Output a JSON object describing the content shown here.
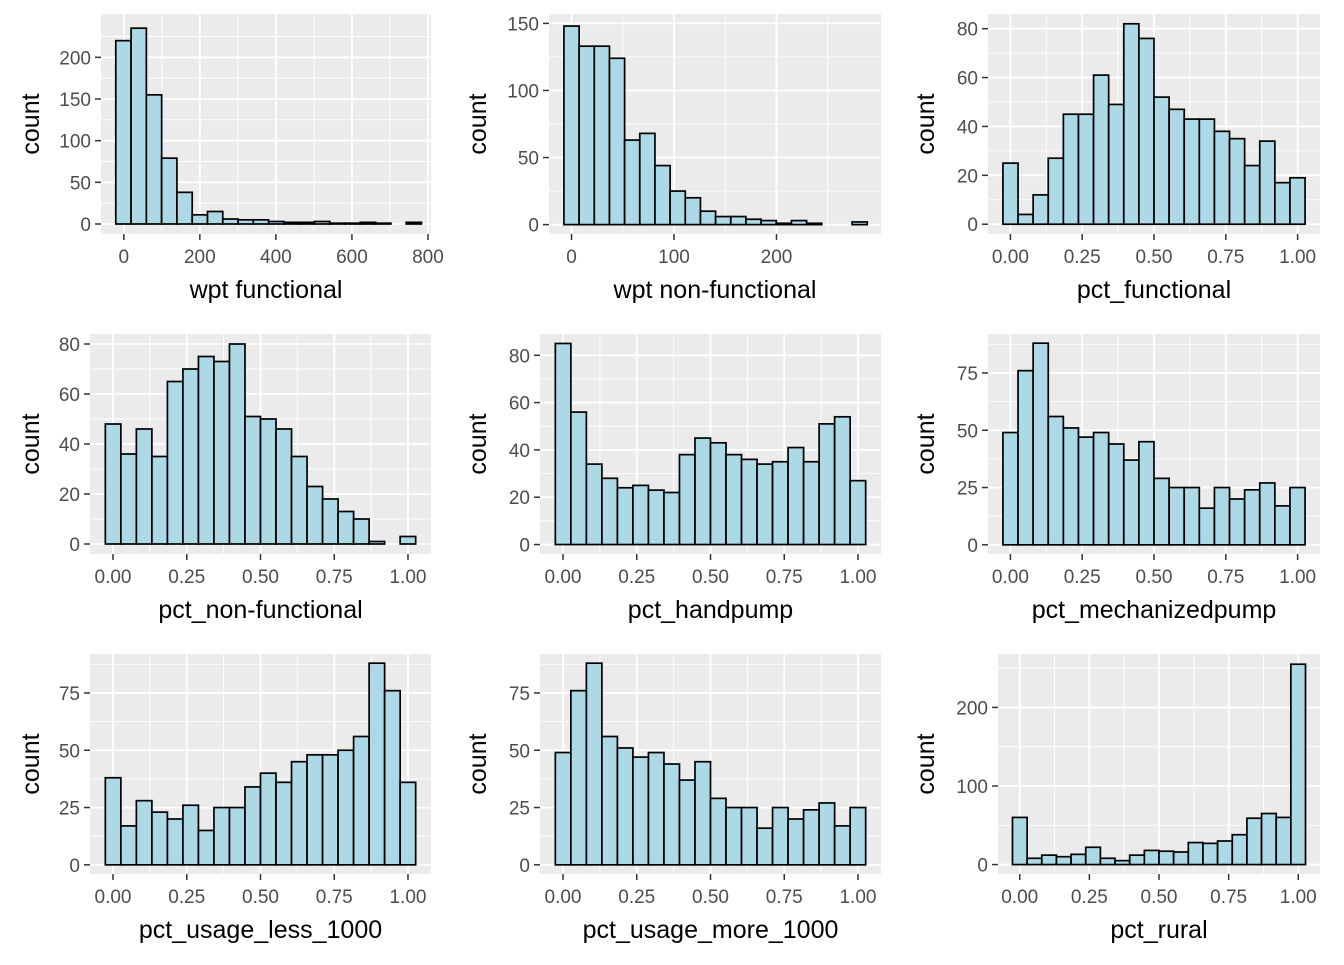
{
  "style": {
    "panel_bg": "#EBEBEB",
    "grid_color": "#FFFFFF",
    "bar_fill": "#ADD8E6",
    "bar_stroke": "#000000",
    "tick_color": "#333333"
  },
  "chart_data": [
    {
      "type": "bar",
      "xlabel": "wpt functional",
      "ylabel": "count",
      "bin_start": -21.1,
      "bin_width": 40.2,
      "values": [
        220,
        235,
        155,
        79,
        38,
        11,
        15,
        6,
        5,
        5,
        3,
        2,
        2,
        3,
        1,
        1,
        2,
        1,
        0,
        2
      ],
      "xlim": [
        -60,
        808
      ],
      "ylim": [
        -12,
        252
      ],
      "x_ticks": [
        0,
        200,
        400,
        600,
        800
      ],
      "y_ticks": [
        0,
        50,
        100,
        150,
        200
      ]
    },
    {
      "type": "bar",
      "xlabel": "wpt non-functional",
      "ylabel": "count",
      "bin_start": -7.4,
      "bin_width": 14.8,
      "values": [
        148,
        133,
        133,
        124,
        63,
        68,
        44,
        25,
        20,
        10,
        6,
        6,
        4,
        3,
        1,
        3,
        1,
        0,
        0,
        2
      ],
      "xlim": [
        -22,
        302
      ],
      "ylim": [
        -7,
        157
      ],
      "x_ticks": [
        0,
        100,
        200
      ],
      "y_ticks": [
        0,
        50,
        100,
        150
      ]
    },
    {
      "type": "bar",
      "xlabel": "pct_functional",
      "ylabel": "count",
      "bin_start": -0.026,
      "bin_width": 0.0526,
      "values": [
        25,
        4,
        12,
        27,
        45,
        45,
        61,
        49,
        82,
        76,
        52,
        47,
        43,
        43,
        38,
        35,
        24,
        34,
        17,
        19
      ],
      "xlim": [
        -0.078,
        1.078
      ],
      "ylim": [
        -4,
        86
      ],
      "x_ticks": [
        "0.00",
        "0.25",
        "0.50",
        "0.75",
        "1.00"
      ],
      "y_ticks": [
        0,
        20,
        40,
        60,
        80
      ]
    },
    {
      "type": "bar",
      "xlabel": "pct_non-functional",
      "ylabel": "count",
      "bin_start": -0.026,
      "bin_width": 0.0526,
      "values": [
        48,
        36,
        46,
        35,
        65,
        70,
        75,
        73,
        80,
        51,
        50,
        46,
        35,
        23,
        18,
        13,
        10,
        1,
        0,
        3
      ],
      "xlim": [
        -0.078,
        1.078
      ],
      "ylim": [
        -4,
        84
      ],
      "x_ticks": [
        "0.00",
        "0.25",
        "0.50",
        "0.75",
        "1.00"
      ],
      "y_ticks": [
        0,
        20,
        40,
        60,
        80
      ]
    },
    {
      "type": "bar",
      "xlabel": "pct_handpump",
      "ylabel": "count",
      "bin_start": -0.026,
      "bin_width": 0.0526,
      "values": [
        85,
        56,
        34,
        28,
        24,
        25,
        23,
        22,
        38,
        45,
        43,
        38,
        36,
        34,
        35,
        41,
        35,
        51,
        54,
        27
      ],
      "xlim": [
        -0.078,
        1.078
      ],
      "ylim": [
        -4,
        89
      ],
      "x_ticks": [
        "0.00",
        "0.25",
        "0.50",
        "0.75",
        "1.00"
      ],
      "y_ticks": [
        0,
        20,
        40,
        60,
        80
      ]
    },
    {
      "type": "bar",
      "xlabel": "pct_mechanizedpump",
      "ylabel": "count",
      "bin_start": -0.026,
      "bin_width": 0.0526,
      "values": [
        49,
        76,
        88,
        56,
        51,
        47,
        49,
        44,
        37,
        45,
        29,
        25,
        25,
        16,
        25,
        20,
        24,
        27,
        17,
        25
      ],
      "xlim": [
        -0.078,
        1.078
      ],
      "ylim": [
        -4,
        92
      ],
      "x_ticks": [
        "0.00",
        "0.25",
        "0.50",
        "0.75",
        "1.00"
      ],
      "y_ticks": [
        0,
        25,
        50,
        75
      ]
    },
    {
      "type": "bar",
      "xlabel": "pct_usage_less_1000",
      "ylabel": "count",
      "bin_start": -0.026,
      "bin_width": 0.0526,
      "values": [
        38,
        17,
        28,
        23,
        20,
        26,
        15,
        25,
        25,
        34,
        40,
        36,
        45,
        48,
        48,
        50,
        56,
        88,
        76,
        36
      ],
      "xlim": [
        -0.078,
        1.078
      ],
      "ylim": [
        -4,
        92
      ],
      "x_ticks": [
        "0.00",
        "0.25",
        "0.50",
        "0.75",
        "1.00"
      ],
      "y_ticks": [
        0,
        25,
        50,
        75
      ]
    },
    {
      "type": "bar",
      "xlabel": "pct_usage_more_1000",
      "ylabel": "count",
      "bin_start": -0.026,
      "bin_width": 0.0526,
      "values": [
        49,
        76,
        88,
        56,
        51,
        47,
        49,
        44,
        37,
        45,
        29,
        25,
        25,
        16,
        25,
        20,
        24,
        27,
        17,
        25
      ],
      "xlim": [
        -0.078,
        1.078
      ],
      "ylim": [
        -4,
        92
      ],
      "x_ticks": [
        "0.00",
        "0.25",
        "0.50",
        "0.75",
        "1.00"
      ],
      "y_ticks": [
        0,
        25,
        50,
        75
      ]
    },
    {
      "type": "bar",
      "xlabel": "pct_rural",
      "ylabel": "count",
      "bin_start": -0.026,
      "bin_width": 0.0526,
      "values": [
        60,
        8,
        12,
        10,
        13,
        22,
        8,
        5,
        12,
        18,
        17,
        16,
        28,
        27,
        30,
        38,
        59,
        65,
        60,
        255
      ],
      "xlim": [
        -0.078,
        1.078
      ],
      "ylim": [
        -12,
        268
      ],
      "x_ticks": [
        "0.00",
        "0.25",
        "0.50",
        "0.75",
        "1.00"
      ],
      "y_ticks": [
        0,
        100,
        200
      ]
    }
  ]
}
